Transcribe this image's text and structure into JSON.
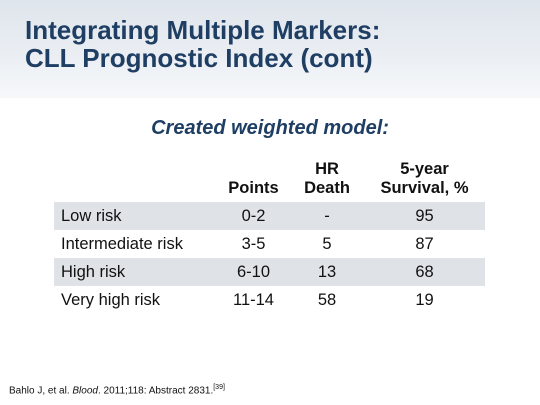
{
  "slide": {
    "title_line1": "Integrating Multiple Markers:",
    "title_line2": "CLL Prognostic Index (cont)",
    "subtitle": "Created weighted model:"
  },
  "table": {
    "headers": {
      "points": "Points",
      "hr_line1": "HR",
      "hr_line2": "Death",
      "surv_line1": "5-year",
      "surv_line2": "Survival, %"
    },
    "rows": [
      {
        "label": "Low risk",
        "points": "0-2",
        "hr": "-",
        "survival": "95"
      },
      {
        "label": "Intermediate risk",
        "points": "3-5",
        "hr": "5",
        "survival": "87"
      },
      {
        "label": "High risk",
        "points": "6-10",
        "hr": "13",
        "survival": "68"
      },
      {
        "label": "Very high risk",
        "points": "11-14",
        "hr": "58",
        "survival": "19"
      }
    ]
  },
  "citation": {
    "authors": "Bahlo J, et al. ",
    "journal": "Blood",
    "details": ". 2011;118: Abstract 2831.",
    "ref": "[39]"
  },
  "colors": {
    "title": "#1f3e63",
    "row_shade": "#dfe3e8"
  }
}
